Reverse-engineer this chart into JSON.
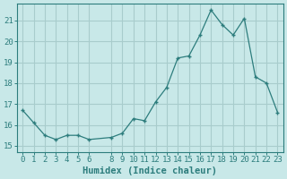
{
  "x": [
    0,
    1,
    2,
    3,
    4,
    5,
    6,
    8,
    9,
    10,
    11,
    12,
    13,
    14,
    15,
    16,
    17,
    18,
    19,
    20,
    21,
    22,
    23
  ],
  "y": [
    16.7,
    16.1,
    15.5,
    15.3,
    15.5,
    15.5,
    15.3,
    15.4,
    15.6,
    16.3,
    16.2,
    17.1,
    17.8,
    19.2,
    19.3,
    20.3,
    21.5,
    20.8,
    20.3,
    21.1,
    18.3,
    18.0,
    16.6
  ],
  "xlabel": "Humidex (Indice chaleur)",
  "xlim": [
    -0.5,
    23.5
  ],
  "ylim": [
    14.7,
    21.8
  ],
  "yticks": [
    15,
    16,
    17,
    18,
    19,
    20,
    21
  ],
  "xticks": [
    0,
    1,
    2,
    3,
    4,
    5,
    6,
    8,
    9,
    10,
    11,
    12,
    13,
    14,
    15,
    16,
    17,
    18,
    19,
    20,
    21,
    22,
    23
  ],
  "line_color": "#2d7d7d",
  "bg_color": "#c8e8e8",
  "grid_color": "#a8cccc",
  "axis_color": "#2d7d7d",
  "label_fontsize": 7.5,
  "tick_fontsize": 6.5
}
